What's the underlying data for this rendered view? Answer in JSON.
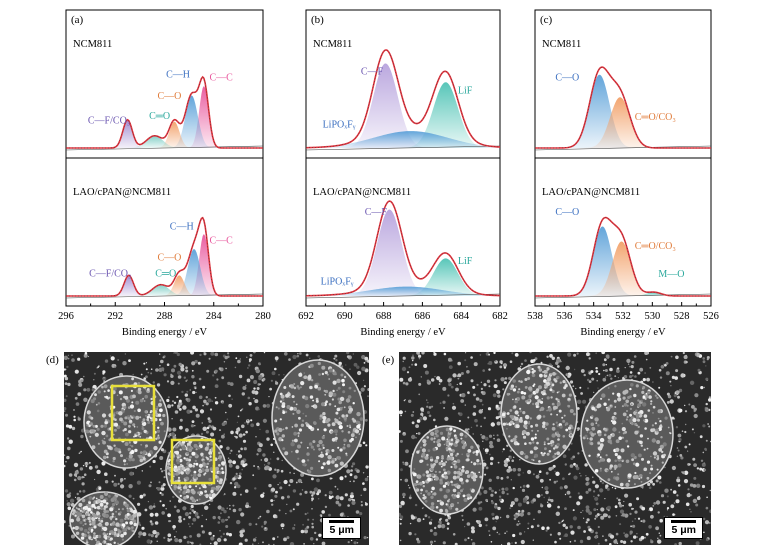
{
  "chart_data": [
    {
      "panel": "(a)",
      "type": "line",
      "xlabel": "Binding energy / eV",
      "xlim": [
        296,
        280
      ],
      "xticks": [
        296,
        292,
        288,
        284,
        280
      ],
      "samples": [
        {
          "name": "NCM811",
          "envelope_peak": 1.0,
          "components": [
            {
              "label": "C—C",
              "center": 284.8,
              "height": 0.66,
              "fwhm": 0.9,
              "color": "#e8569c",
              "text_color": "#e8569c",
              "label_at": [
                283.4,
                0.72
              ]
            },
            {
              "label": "C—H",
              "center": 285.8,
              "height": 0.56,
              "fwhm": 1.2,
              "color": "#5aa0d8",
              "text_color": "#3b6fc0",
              "label_at": [
                286.9,
                0.75
              ]
            },
            {
              "label": "C—O",
              "center": 287.2,
              "height": 0.28,
              "fwhm": 1.0,
              "color": "#f2a068",
              "text_color": "#e07b39",
              "label_at": [
                287.6,
                0.52
              ]
            },
            {
              "label": "C═O",
              "center": 288.8,
              "height": 0.13,
              "fwhm": 1.6,
              "color": "#7ccdc4",
              "text_color": "#2aa89c",
              "label_at": [
                288.4,
                0.31
              ]
            },
            {
              "label": "C—F/CO₃",
              "center": 291.0,
              "height": 0.3,
              "fwhm": 0.9,
              "color": "#a08bd0",
              "text_color": "#6a55b0",
              "label_at": [
                292.5,
                0.26
              ]
            }
          ]
        },
        {
          "name": "LAO/cPAN@NCM811",
          "envelope_peak": 1.0,
          "components": [
            {
              "label": "C—C",
              "center": 284.8,
              "height": 0.66,
              "fwhm": 0.9,
              "color": "#e8569c",
              "text_color": "#e8569c",
              "label_at": [
                283.4,
                0.56
              ]
            },
            {
              "label": "C—H",
              "center": 285.6,
              "height": 0.5,
              "fwhm": 1.2,
              "color": "#5aa0d8",
              "text_color": "#3b6fc0",
              "label_at": [
                286.6,
                0.71
              ]
            },
            {
              "label": "C—O",
              "center": 286.8,
              "height": 0.22,
              "fwhm": 1.0,
              "color": "#f2a068",
              "text_color": "#e07b39",
              "label_at": [
                287.6,
                0.38
              ]
            },
            {
              "label": "C═O",
              "center": 288.3,
              "height": 0.12,
              "fwhm": 1.6,
              "color": "#7ccdc4",
              "text_color": "#2aa89c",
              "label_at": [
                287.9,
                0.21
              ]
            },
            {
              "label": "C—F/CO₃",
              "center": 290.9,
              "height": 0.22,
              "fwhm": 0.9,
              "color": "#a08bd0",
              "text_color": "#6a55b0",
              "label_at": [
                292.4,
                0.21
              ]
            }
          ]
        }
      ]
    },
    {
      "panel": "(b)",
      "type": "line",
      "xlabel": "Binding energy / eV",
      "xlim": [
        692,
        682
      ],
      "xticks": [
        692,
        690,
        688,
        686,
        684,
        682
      ],
      "samples": [
        {
          "name": "NCM811",
          "envelope_peak": 1.0,
          "components": [
            {
              "label": "C—F",
              "center": 687.9,
              "height": 0.9,
              "fwhm": 1.5,
              "color": "#b7a3dd",
              "text_color": "#6a55b0",
              "label_at": [
                688.6,
                0.78
              ]
            },
            {
              "label": "LiF",
              "center": 684.8,
              "height": 0.7,
              "fwhm": 1.5,
              "color": "#4fc3b5",
              "text_color": "#2aa89c",
              "label_at": [
                683.8,
                0.58
              ]
            },
            {
              "label": "LiPOₓFᵧ",
              "center": 686.6,
              "height": 0.18,
              "fwhm": 4.5,
              "color": "#5aa0d8",
              "text_color": "#3b6fc0",
              "label_at": [
                690.3,
                0.22
              ]
            }
          ]
        },
        {
          "name": "LAO/cPAN@NCM811",
          "envelope_peak": 1.0,
          "components": [
            {
              "label": "C—F",
              "center": 687.7,
              "height": 0.92,
              "fwhm": 1.5,
              "color": "#b7a3dd",
              "text_color": "#6a55b0",
              "label_at": [
                688.4,
                0.86
              ]
            },
            {
              "label": "LiF",
              "center": 684.8,
              "height": 0.4,
              "fwhm": 1.5,
              "color": "#4fc3b5",
              "text_color": "#2aa89c",
              "label_at": [
                683.8,
                0.34
              ]
            },
            {
              "label": "LiPOₓFᵧ",
              "center": 686.8,
              "height": 0.1,
              "fwhm": 4.5,
              "color": "#5aa0d8",
              "text_color": "#3b6fc0",
              "label_at": [
                690.4,
                0.12
              ]
            }
          ]
        }
      ]
    },
    {
      "panel": "(c)",
      "type": "line",
      "xlabel": "Binding energy / eV",
      "xlim": [
        538,
        526
      ],
      "xticks": [
        538,
        536,
        534,
        532,
        530,
        528,
        526
      ],
      "samples": [
        {
          "name": "NCM811",
          "envelope_peak": 1.0,
          "components": [
            {
              "label": "C—O",
              "center": 533.6,
              "height": 0.78,
              "fwhm": 1.6,
              "color": "#5aa0d8",
              "text_color": "#3b6fc0",
              "label_at": [
                535.8,
                0.72
              ]
            },
            {
              "label": "C═O/CO₃",
              "center": 532.2,
              "height": 0.54,
              "fwhm": 1.6,
              "color": "#f2a068",
              "text_color": "#e07b39",
              "label_at": [
                529.8,
                0.3
              ]
            }
          ]
        },
        {
          "name": "LAO/cPAN@NCM811",
          "envelope_peak": 1.0,
          "components": [
            {
              "label": "C—O",
              "center": 533.4,
              "height": 0.74,
              "fwhm": 1.5,
              "color": "#5aa0d8",
              "text_color": "#3b6fc0",
              "label_at": [
                535.8,
                0.86
              ]
            },
            {
              "label": "C═O/CO₃",
              "center": 532.1,
              "height": 0.58,
              "fwhm": 1.5,
              "color": "#f2a068",
              "text_color": "#e07b39",
              "label_at": [
                529.8,
                0.5
              ]
            },
            {
              "label": "M—O",
              "center": 529.9,
              "height": 0.04,
              "fwhm": 1.2,
              "color": "#4fc3b5",
              "text_color": "#2aa89c",
              "label_at": [
                528.7,
                0.2
              ]
            }
          ]
        }
      ]
    }
  ],
  "sem": [
    {
      "panel": "(d)",
      "scale_bar": "5 μm",
      "highlight_color": "#e8e03a"
    },
    {
      "panel": "(e)",
      "scale_bar": "5 μm"
    }
  ]
}
